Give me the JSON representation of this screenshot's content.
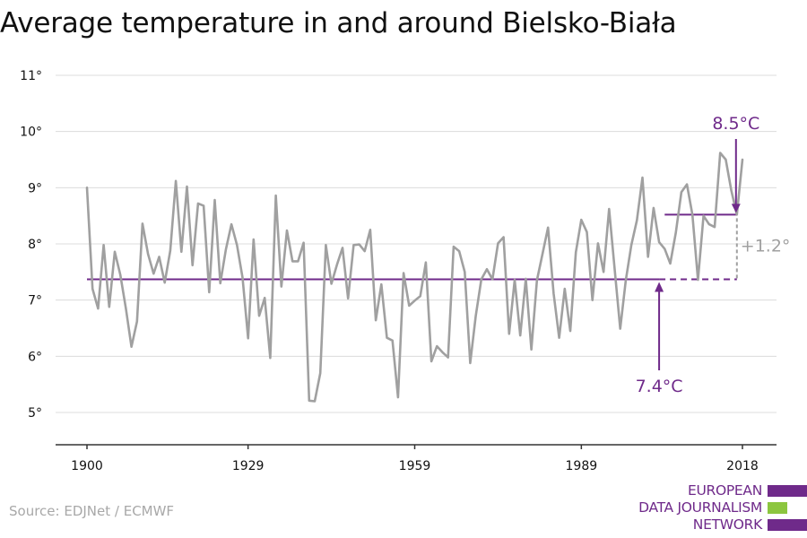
{
  "title": "Average temperature in and around Bielsko-Biała",
  "source": "Source: EDJNet / ECMWF",
  "logo": {
    "lines": [
      "EUROPEAN",
      "DATA JOURNALISM",
      "NETWORK"
    ],
    "colors": [
      "#6f2a8a",
      "#8cc63f",
      "#6f2a8a"
    ]
  },
  "colors": {
    "series": "#a0a0a0",
    "accent": "#6f2a8a",
    "axis": "#333333",
    "grid": "#dcdcdc"
  },
  "chart_data": {
    "type": "line",
    "title": "Average temperature in and around Bielsko-Biała",
    "xlabel": "",
    "ylabel": "",
    "xlim": [
      1900,
      2018
    ],
    "ylim": [
      5,
      11
    ],
    "x_ticks": [
      1900,
      1929,
      1959,
      1989,
      2018
    ],
    "y_ticks": [
      5,
      6,
      7,
      8,
      9,
      10,
      11
    ],
    "y_tick_labels": [
      "5°",
      "6°",
      "7°",
      "8°",
      "9°",
      "10°",
      "11°"
    ],
    "grid": "horizontal",
    "series": [
      {
        "x": [
          1900,
          1901,
          1902,
          1903,
          1904,
          1905,
          1906,
          1907,
          1908,
          1909,
          1910,
          1911,
          1912,
          1913,
          1914,
          1915,
          1916,
          1917,
          1918,
          1919,
          1920,
          1921,
          1922,
          1923,
          1924,
          1925,
          1926,
          1927,
          1928,
          1929,
          1930,
          1931,
          1932,
          1933,
          1934,
          1935,
          1936,
          1937,
          1938,
          1939,
          1940,
          1941,
          1942,
          1943,
          1944,
          1945,
          1946,
          1947,
          1948,
          1949,
          1950,
          1951,
          1952,
          1953,
          1954,
          1955,
          1956,
          1957,
          1958,
          1959,
          1960,
          1961,
          1962,
          1963,
          1964,
          1965,
          1966,
          1967,
          1968,
          1969,
          1970,
          1971,
          1972,
          1973,
          1974,
          1975,
          1976,
          1977,
          1978,
          1979,
          1980,
          1981,
          1982,
          1983,
          1984,
          1985,
          1986,
          1987,
          1988,
          1989,
          1990,
          1991,
          1992,
          1993,
          1994,
          1995,
          1996,
          1997,
          1998,
          1999,
          2000,
          2001,
          2002,
          2003,
          2004,
          2005,
          2006,
          2007,
          2008,
          2009,
          2010,
          2011,
          2012,
          2013,
          2014,
          2015,
          2016,
          2017,
          2018
        ],
        "values": [
          9.0,
          7.2,
          6.85,
          7.98,
          6.88,
          7.86,
          7.45,
          6.85,
          6.17,
          6.62,
          8.36,
          7.82,
          7.47,
          7.77,
          7.31,
          7.88,
          9.12,
          7.86,
          9.02,
          7.62,
          8.72,
          8.68,
          7.14,
          8.78,
          7.3,
          7.9,
          8.35,
          7.98,
          7.4,
          6.32,
          8.08,
          6.72,
          7.04,
          5.97,
          8.86,
          7.24,
          8.24,
          7.69,
          7.69,
          8.02,
          5.21,
          5.2,
          5.7,
          7.98,
          7.29,
          7.63,
          7.93,
          7.03,
          7.98,
          7.99,
          7.87,
          8.25,
          6.64,
          7.28,
          6.33,
          6.28,
          5.27,
          7.48,
          6.9,
          6.99,
          7.07,
          7.67,
          5.91,
          6.18,
          6.07,
          5.98,
          7.95,
          7.87,
          7.5,
          5.88,
          6.72,
          7.37,
          7.55,
          7.37,
          8.01,
          8.12,
          6.4,
          7.36,
          6.37,
          7.38,
          6.12,
          7.35,
          7.82,
          8.29,
          7.12,
          6.33,
          7.2,
          6.45,
          7.85,
          8.43,
          8.21,
          7.0,
          8.01,
          7.5,
          8.62,
          7.55,
          6.49,
          7.35,
          7.98,
          8.42,
          9.18,
          7.77,
          8.64,
          8.03,
          7.91,
          7.65,
          8.2,
          8.92,
          9.06,
          8.52,
          7.36,
          8.5,
          8.35,
          8.3,
          9.62,
          9.5,
          8.95,
          8.52,
          9.5
        ]
      }
    ],
    "reference_lines": [
      {
        "label": "7.4°C",
        "y": 7.37,
        "x_from": 1900,
        "x_to": 2003,
        "style": "solid"
      },
      {
        "y": 7.37,
        "x_from": 2003,
        "x_to": 2017,
        "style": "dashed"
      },
      {
        "label": "8.5°C",
        "y": 8.52,
        "x_from": 2004,
        "x_to": 2017,
        "style": "solid"
      }
    ],
    "annotations": [
      {
        "text": "8.5°C",
        "x": 2017,
        "y": 8.52
      },
      {
        "text": "7.4°C",
        "x": 2003,
        "y": 7.37
      },
      {
        "text": "+1.2°",
        "x": 2017
      }
    ]
  }
}
